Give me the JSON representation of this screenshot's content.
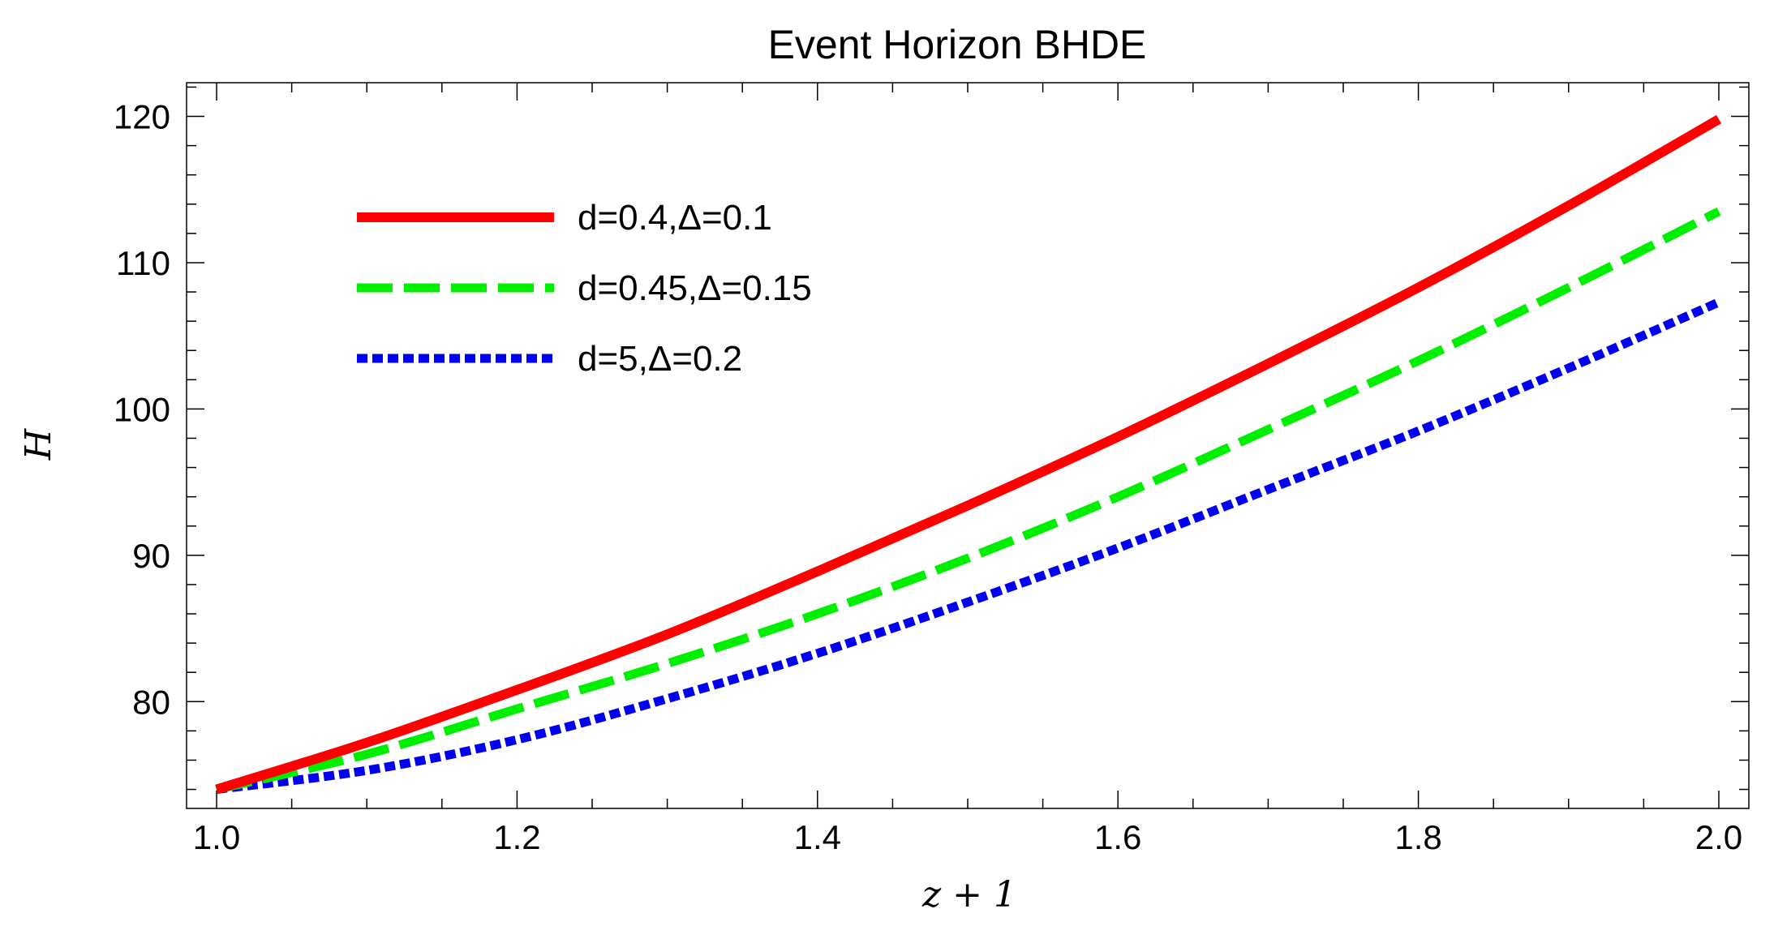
{
  "chart_data": {
    "type": "line",
    "title": "Event Horizon BHDE",
    "xlabel": "z + 1",
    "ylabel": "H",
    "xlim": [
      0.98,
      2.02
    ],
    "ylim": [
      72.7,
      122.3
    ],
    "x_ticks": [
      1.0,
      1.2,
      1.4,
      1.6,
      1.8,
      2.0
    ],
    "x_tick_labels": [
      "1.0",
      "1.2",
      "1.4",
      "1.6",
      "1.8",
      "2.0"
    ],
    "y_ticks": [
      80,
      90,
      100,
      110,
      120
    ],
    "y_tick_labels": [
      "80",
      "90",
      "100",
      "110",
      "120"
    ],
    "grid": false,
    "legend_position": "top-left",
    "x": [
      1.0,
      1.1,
      1.2,
      1.3,
      1.4,
      1.5,
      1.6,
      1.7,
      1.8,
      1.9,
      2.0
    ],
    "series": [
      {
        "name": "d=0.4,Δ=0.1",
        "color": "#ff0000",
        "style": "solid",
        "values": [
          74.0,
          77.2,
          80.8,
          84.6,
          88.9,
          93.4,
          98.1,
          103.1,
          108.3,
          113.9,
          119.8
        ]
      },
      {
        "name": "d=0.45,Δ=0.15",
        "color": "#00ee00",
        "style": "dashed",
        "values": [
          74.0,
          76.4,
          79.5,
          82.6,
          86.0,
          89.8,
          94.0,
          98.6,
          103.3,
          108.3,
          113.5
        ]
      },
      {
        "name": "d=5,Δ=0.2",
        "color": "#0000ee",
        "style": "dotted",
        "values": [
          74.0,
          75.3,
          77.4,
          80.2,
          83.3,
          86.8,
          90.5,
          94.5,
          98.5,
          102.8,
          107.3
        ]
      }
    ]
  }
}
